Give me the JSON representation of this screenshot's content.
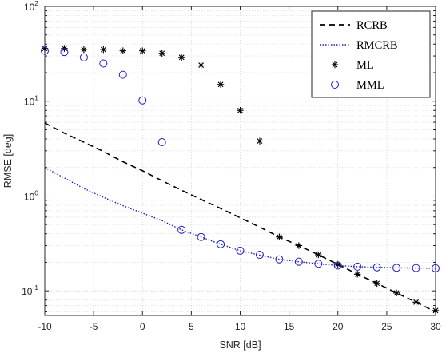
{
  "chart_data": {
    "type": "line",
    "xlabel": "SNR [dB]",
    "ylabel": "RMSE [deg]",
    "xlim": [
      -10,
      30
    ],
    "ylim": [
      0.055,
      100
    ],
    "yscale": "log",
    "grid": true,
    "legend_position": "top-right",
    "x_ticks": [
      "-10",
      "-5",
      "0",
      "5",
      "10",
      "15",
      "20",
      "25",
      "30"
    ],
    "y_ticks": [
      {
        "base": "10",
        "exp": "-1"
      },
      {
        "base": "10",
        "exp": "0"
      },
      {
        "base": "10",
        "exp": "1"
      },
      {
        "base": "10",
        "exp": "2"
      }
    ],
    "series": [
      {
        "name": "RCRB",
        "style": "dashed",
        "color": "#000000",
        "x": [
          -10,
          -8,
          -6,
          -4,
          -2,
          0,
          2,
          4,
          6,
          8,
          10,
          12,
          14,
          16,
          18,
          20,
          22,
          24,
          26,
          28,
          30
        ],
        "y": [
          5.9,
          4.6,
          3.7,
          2.95,
          2.3,
          1.85,
          1.45,
          1.15,
          0.92,
          0.74,
          0.59,
          0.47,
          0.37,
          0.3,
          0.24,
          0.19,
          0.15,
          0.12,
          0.095,
          0.076,
          0.06
        ]
      },
      {
        "name": "RMCRB",
        "style": "dotted",
        "color": "#1f1fbf",
        "x": [
          -10,
          -8,
          -6,
          -4,
          -2,
          0,
          2,
          4,
          6,
          8,
          10,
          12,
          14,
          16,
          18,
          20,
          22,
          24,
          26,
          28,
          30
        ],
        "y": [
          2.0,
          1.55,
          1.2,
          0.97,
          0.79,
          0.66,
          0.55,
          0.44,
          0.37,
          0.31,
          0.265,
          0.238,
          0.215,
          0.203,
          0.193,
          0.185,
          0.18,
          0.177,
          0.175,
          0.174,
          0.173
        ]
      },
      {
        "name": "ML",
        "style": "star",
        "color": "#000000",
        "x": [
          -10,
          -8,
          -6,
          -4,
          -2,
          0,
          2,
          4,
          6,
          8,
          10,
          12,
          14,
          16,
          18,
          20,
          22,
          24,
          26,
          28,
          30
        ],
        "y": [
          36,
          36,
          35,
          35,
          34,
          34,
          32,
          29,
          24,
          15,
          8,
          3.8,
          0.37,
          0.3,
          0.24,
          0.19,
          0.15,
          0.12,
          0.095,
          0.076,
          0.062
        ]
      },
      {
        "name": "MML",
        "style": "circle",
        "color": "#1f1fcc",
        "x": [
          -10,
          -8,
          -6,
          -4,
          -2,
          0,
          2,
          4,
          6,
          8,
          10,
          12,
          14,
          16,
          18,
          20,
          22,
          24,
          26,
          28,
          30
        ],
        "y": [
          34,
          33,
          29,
          25,
          19,
          10.2,
          3.7,
          0.44,
          0.37,
          0.31,
          0.265,
          0.24,
          0.215,
          0.203,
          0.193,
          0.185,
          0.18,
          0.177,
          0.175,
          0.174,
          0.173
        ]
      }
    ]
  }
}
